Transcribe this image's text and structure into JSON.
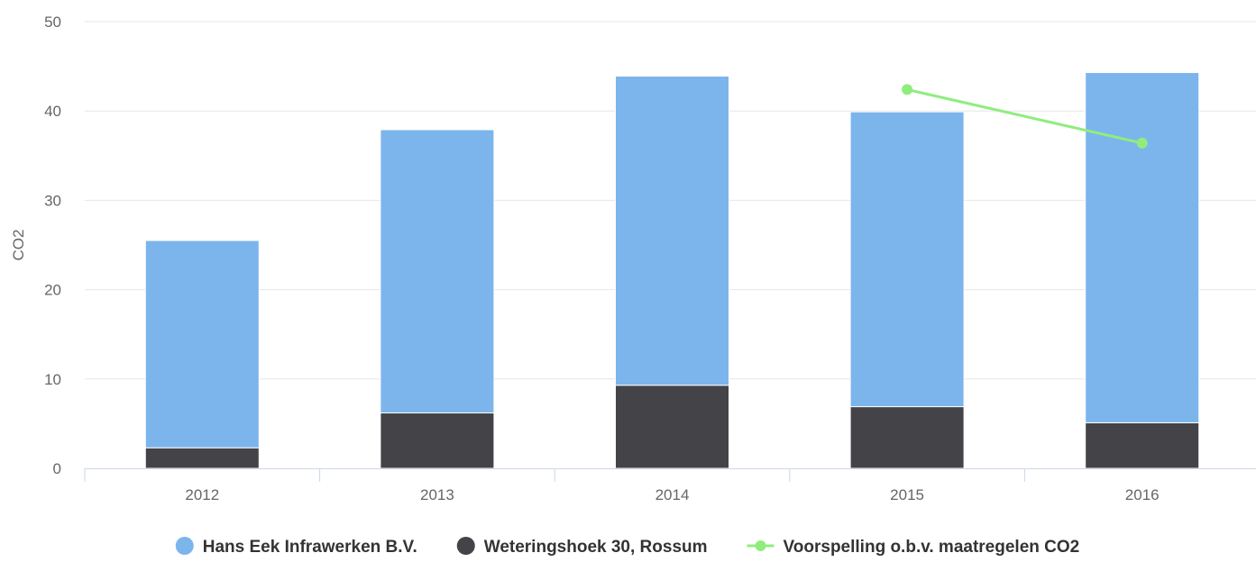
{
  "chart_data": {
    "type": "bar",
    "stacked": true,
    "categories": [
      "2012",
      "2013",
      "2014",
      "2015",
      "2016"
    ],
    "ylabel": "CO2",
    "ylim": [
      0,
      50
    ],
    "yticks": [
      0,
      10,
      20,
      30,
      40,
      50
    ],
    "grid": true,
    "legend_position": "bottom",
    "series": [
      {
        "name": "Weteringshoek 30, Rossum",
        "kind": "bar",
        "color": "#434348",
        "values": [
          2.3,
          6.2,
          9.3,
          6.9,
          5.1
        ]
      },
      {
        "name": "Hans Eek Infrawerken B.V.",
        "kind": "bar",
        "color": "#7cb5ec",
        "values": [
          23.2,
          31.7,
          34.6,
          33.0,
          39.2
        ]
      },
      {
        "name": "Voorspelling o.b.v. maatregelen CO2",
        "kind": "line",
        "color": "#90ed7d",
        "values": [
          null,
          null,
          null,
          42.4,
          36.4
        ]
      }
    ],
    "legend": [
      {
        "label": "Hans Eek Infrawerken B.V.",
        "marker": "circle",
        "color": "#7cb5ec"
      },
      {
        "label": "Weteringshoek 30, Rossum",
        "marker": "circle",
        "color": "#434348"
      },
      {
        "label": "Voorspelling o.b.v. maatregelen CO2",
        "marker": "line",
        "color": "#90ed7d"
      }
    ]
  }
}
